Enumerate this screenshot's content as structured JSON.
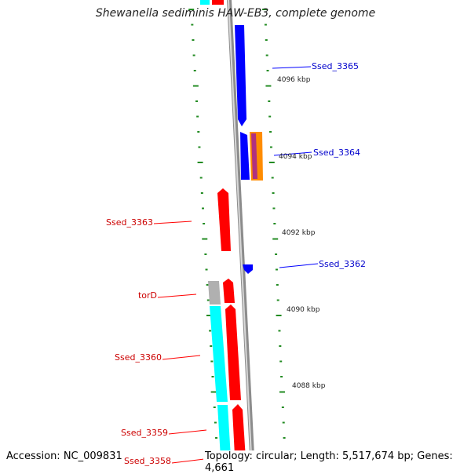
{
  "title": "Shewanella sediminis HAW-EB3, complete genome",
  "footer": {
    "accession": "Accession: NC_009831",
    "summary": "Topology: circular; Length: 5,517,674 bp; Genes: 4,661"
  },
  "colors": {
    "forward_gene": "#ff0000",
    "reverse_gene": "#0000ff",
    "cds_cyan": "#00ffff",
    "feature_gray": "#b0b0b0",
    "tick_green": "#228b22",
    "backbone": "#8c8c8c"
  },
  "scale_labels": [
    {
      "text": "4096 kbp"
    },
    {
      "text": "4094 kbp"
    },
    {
      "text": "4092 kbp"
    },
    {
      "text": "4090 kbp"
    },
    {
      "text": "4088 kbp"
    }
  ],
  "gene_labels": [
    {
      "text": "Ssed_3365",
      "strand": "reverse"
    },
    {
      "text": "Ssed_3364",
      "strand": "reverse"
    },
    {
      "text": "Ssed_3363",
      "strand": "forward"
    },
    {
      "text": "Ssed_3362",
      "strand": "reverse"
    },
    {
      "text": "torD",
      "strand": "forward"
    },
    {
      "text": "Ssed_3360",
      "strand": "forward"
    },
    {
      "text": "Ssed_3359",
      "strand": "forward"
    },
    {
      "text": "Ssed_3358",
      "strand": "forward"
    }
  ]
}
